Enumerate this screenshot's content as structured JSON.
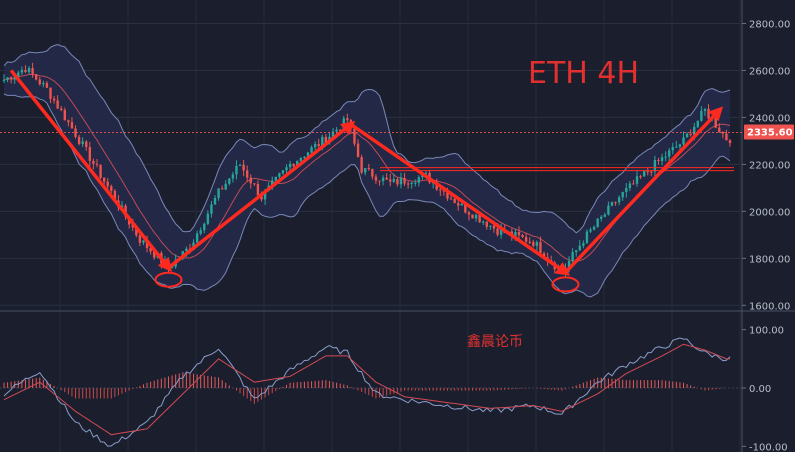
{
  "chart_data": [
    {
      "type": "candlestick",
      "title": "ETH  4H",
      "ylim": [
        1580,
        2900
      ],
      "yticks": [
        "1600.00",
        "1800.00",
        "2000.00",
        "2200.00",
        "2400.00",
        "2600.00",
        "2800.00"
      ],
      "last_price": "2335.60",
      "current_price_line": 2335.6,
      "resistance_line": 2180,
      "path_points": [
        [
          0,
          2560
        ],
        [
          6,
          2610
        ],
        [
          12,
          2520
        ],
        [
          20,
          2330
        ],
        [
          30,
          2080
        ],
        [
          38,
          1880
        ],
        [
          46,
          1760
        ],
        [
          52,
          1850
        ],
        [
          60,
          2080
        ],
        [
          66,
          2200
        ],
        [
          72,
          2060
        ],
        [
          80,
          2200
        ],
        [
          90,
          2310
        ],
        [
          96,
          2390
        ],
        [
          100,
          2180
        ],
        [
          108,
          2120
        ],
        [
          118,
          2150
        ],
        [
          128,
          2020
        ],
        [
          138,
          1920
        ],
        [
          148,
          1870
        ],
        [
          156,
          1740
        ],
        [
          162,
          1880
        ],
        [
          172,
          2060
        ],
        [
          182,
          2200
        ],
        [
          190,
          2300
        ],
        [
          196,
          2430
        ],
        [
          202,
          2310
        ]
      ],
      "trend_arrows": [
        {
          "from": [
            2,
            2600
          ],
          "to": [
            46,
            1760
          ]
        },
        {
          "from": [
            46,
            1760
          ],
          "to": [
            97,
            2370
          ]
        },
        {
          "from": [
            97,
            2370
          ],
          "to": [
            157,
            1740
          ]
        },
        {
          "from": [
            157,
            1740
          ],
          "to": [
            200,
            2430
          ]
        }
      ],
      "highlight_circles": [
        {
          "x": 46,
          "y": 1760
        },
        {
          "x": 157,
          "y": 1740
        }
      ],
      "colors": {
        "up": "#26a69a",
        "down": "#ef5350",
        "arrow": "#ff2a1f",
        "band": "#7a88b8",
        "middle": "#c04a5a"
      }
    },
    {
      "type": "oscillator",
      "ylim": [
        -120,
        120
      ],
      "yticks": [
        "100.00",
        "0.00",
        "-100.00"
      ],
      "fast_line": [
        [
          0,
          -10
        ],
        [
          10,
          30
        ],
        [
          20,
          -60
        ],
        [
          30,
          -100
        ],
        [
          40,
          -60
        ],
        [
          50,
          20
        ],
        [
          60,
          70
        ],
        [
          70,
          -20
        ],
        [
          80,
          30
        ],
        [
          90,
          70
        ],
        [
          96,
          60
        ],
        [
          104,
          -10
        ],
        [
          112,
          -20
        ],
        [
          124,
          -30
        ],
        [
          136,
          -40
        ],
        [
          148,
          -30
        ],
        [
          156,
          -45
        ],
        [
          166,
          10
        ],
        [
          174,
          40
        ],
        [
          184,
          70
        ],
        [
          190,
          85
        ],
        [
          196,
          60
        ],
        [
          202,
          50
        ]
      ],
      "slow_line": [
        [
          0,
          -20
        ],
        [
          10,
          10
        ],
        [
          20,
          -40
        ],
        [
          30,
          -80
        ],
        [
          40,
          -70
        ],
        [
          50,
          -10
        ],
        [
          60,
          50
        ],
        [
          70,
          10
        ],
        [
          80,
          20
        ],
        [
          90,
          55
        ],
        [
          96,
          55
        ],
        [
          104,
          10
        ],
        [
          112,
          -15
        ],
        [
          124,
          -25
        ],
        [
          136,
          -35
        ],
        [
          148,
          -30
        ],
        [
          156,
          -40
        ],
        [
          166,
          -10
        ],
        [
          174,
          25
        ],
        [
          184,
          55
        ],
        [
          190,
          75
        ],
        [
          196,
          65
        ],
        [
          202,
          50
        ]
      ]
    }
  ],
  "watermark": "鑫晨论币"
}
